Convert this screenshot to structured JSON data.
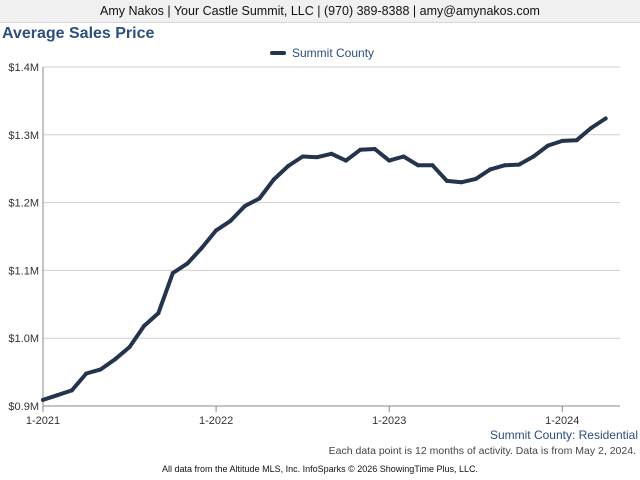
{
  "header": {
    "text": "Amy Nakos | Your Castle Summit, LLC | (970) 389-8388 | amy@amynakos.com"
  },
  "footer": {
    "series_label": "Summit County: Residential",
    "note": "Each data point is 12 months of activity. Data is from May 2, 2024.",
    "source": "All data from the Altitude MLS, Inc. InfoSparks © 2026 ShowingTime Plus, LLC."
  },
  "chart_data": {
    "type": "line",
    "title": "Average Sales Price",
    "xlabel": "",
    "ylabel": "",
    "ylim": [
      900000,
      1400000
    ],
    "y_ticks": [
      900000,
      1000000,
      1100000,
      1200000,
      1300000,
      1400000
    ],
    "y_tick_labels": [
      "$0.9M",
      "$1.0M",
      "$1.1M",
      "$1.2M",
      "$1.3M",
      "$1.4M"
    ],
    "x_tick_labels": [
      "1-2021",
      "1-2022",
      "1-2023",
      "1-2024"
    ],
    "x_tick_positions": [
      "2021-01",
      "2022-01",
      "2023-01",
      "2024-01"
    ],
    "grid": true,
    "legend_position": "top-center",
    "series": [
      {
        "name": "Summit County",
        "color": "#24344d",
        "x": [
          "2021-01",
          "2021-02",
          "2021-03",
          "2021-04",
          "2021-05",
          "2021-06",
          "2021-07",
          "2021-08",
          "2021-09",
          "2021-10",
          "2021-11",
          "2021-12",
          "2022-01",
          "2022-02",
          "2022-03",
          "2022-04",
          "2022-05",
          "2022-06",
          "2022-07",
          "2022-08",
          "2022-09",
          "2022-10",
          "2022-11",
          "2022-12",
          "2023-01",
          "2023-02",
          "2023-03",
          "2023-04",
          "2023-05",
          "2023-06",
          "2023-07",
          "2023-08",
          "2023-09",
          "2023-10",
          "2023-11",
          "2023-12",
          "2024-01",
          "2024-02",
          "2024-03",
          "2024-04"
        ],
        "values": [
          909000,
          916000,
          923000,
          948000,
          954000,
          969000,
          987000,
          1018000,
          1037000,
          1096000,
          1110000,
          1133000,
          1159000,
          1173000,
          1195000,
          1206000,
          1234000,
          1254000,
          1268000,
          1267000,
          1272000,
          1262000,
          1278000,
          1279000,
          1262000,
          1268000,
          1255000,
          1255000,
          1232000,
          1230000,
          1235000,
          1249000,
          1255000,
          1256000,
          1268000,
          1284000,
          1291000,
          1292000,
          1310000,
          1324000
        ]
      }
    ]
  }
}
